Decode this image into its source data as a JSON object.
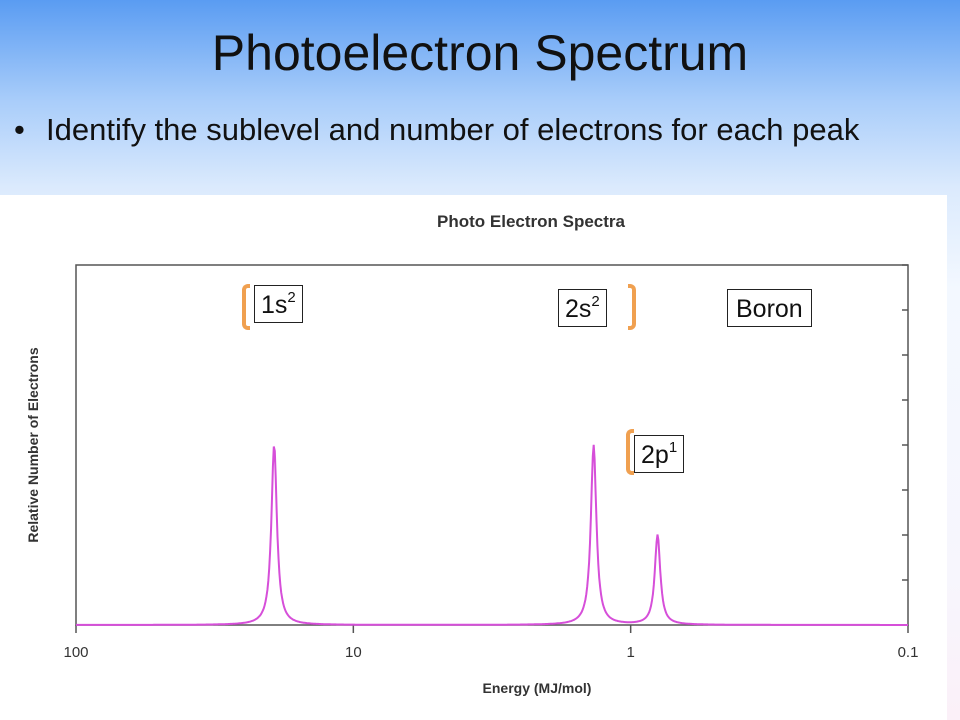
{
  "slide": {
    "title": "Photoelectron Spectrum",
    "bullet": "Identify the sublevel and number of electrons for each peak"
  },
  "colors": {
    "peak": "#d64fd9",
    "bracket": "#f0a050",
    "axis": "#555555"
  },
  "chart_data": {
    "type": "line",
    "title": "Photo Electron Spectra",
    "xlabel": "Energy (MJ/mol)",
    "ylabel": "Relative Number of Electrons",
    "x_scale": "log",
    "x_reversed": true,
    "xlim": [
      100,
      0.1
    ],
    "ylim": [
      0,
      4
    ],
    "x_ticks": [
      "100",
      "10",
      "1",
      "0.1"
    ],
    "grid": false,
    "series": [
      {
        "peaks": [
          {
            "x": 19.3,
            "y": 2,
            "label_main": "1s",
            "label_sup": "2"
          },
          {
            "x": 1.36,
            "y": 2,
            "label_main": "2s",
            "label_sup": "2"
          },
          {
            "x": 0.8,
            "y": 1,
            "label_main": "2p",
            "label_sup": "1"
          }
        ]
      }
    ],
    "annotation": "Boron"
  }
}
